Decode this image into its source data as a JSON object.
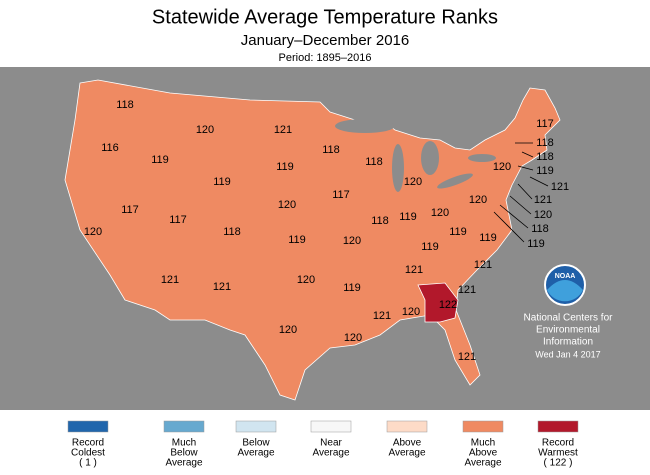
{
  "header": {
    "title": "Statewide Average Temperature Ranks",
    "subtitle": "January–December 2016",
    "period": "Period: 1895–2016"
  },
  "map": {
    "background": "#8c8c8c",
    "states": [
      {
        "rank": 118,
        "color": "#ef8a62"
      },
      {
        "rank": 116,
        "color": "#ef8a62"
      },
      {
        "rank": 119,
        "color": "#ef8a62"
      },
      {
        "rank": 120,
        "color": "#ef8a62"
      },
      {
        "rank": 119,
        "color": "#ef8a62"
      },
      {
        "rank": 121,
        "color": "#ef8a62"
      },
      {
        "rank": 119,
        "color": "#ef8a62"
      },
      {
        "rank": 118,
        "color": "#ef8a62"
      },
      {
        "rank": 118,
        "color": "#ef8a62"
      },
      {
        "rank": 120,
        "color": "#ef8a62"
      },
      {
        "rank": 120,
        "color": "#ef8a62"
      },
      {
        "rank": 117,
        "color": "#ef8a62"
      },
      {
        "rank": 117,
        "color": "#ef8a62"
      },
      {
        "rank": 117,
        "color": "#ef8a62"
      },
      {
        "rank": 118,
        "color": "#ef8a62"
      },
      {
        "rank": 119,
        "color": "#ef8a62"
      },
      {
        "rank": 120,
        "color": "#ef8a62"
      },
      {
        "rank": 118,
        "color": "#ef8a62"
      },
      {
        "rank": 119,
        "color": "#ef8a62"
      },
      {
        "rank": 120,
        "color": "#ef8a62"
      },
      {
        "rank": 120,
        "color": "#ef8a62"
      },
      {
        "rank": 120,
        "color": "#ef8a62"
      },
      {
        "rank": 117,
        "color": "#ef8a62"
      },
      {
        "rank": 120,
        "color": "#ef8a62"
      },
      {
        "rank": 121,
        "color": "#ef8a62"
      },
      {
        "rank": 121,
        "color": "#ef8a62"
      },
      {
        "rank": 120,
        "color": "#ef8a62"
      },
      {
        "rank": 119,
        "color": "#ef8a62"
      },
      {
        "rank": 121,
        "color": "#ef8a62"
      },
      {
        "rank": 119,
        "color": "#ef8a62"
      },
      {
        "rank": 119,
        "color": "#ef8a62"
      },
      {
        "rank": 119,
        "color": "#ef8a62"
      },
      {
        "rank": 121,
        "color": "#ef8a62"
      },
      {
        "rank": 120,
        "color": "#ef8a62"
      },
      {
        "rank": 120,
        "color": "#ef8a62"
      },
      {
        "rank": 121,
        "color": "#ef8a62"
      },
      {
        "rank": 120,
        "color": "#ef8a62"
      },
      {
        "rank": 122,
        "color": "#b2182b"
      },
      {
        "rank": 121,
        "color": "#ef8a62"
      },
      {
        "rank": 121,
        "color": "#ef8a62"
      },
      {
        "rank": 118,
        "color": "#ef8a62"
      },
      {
        "rank": 118,
        "color": "#ef8a62"
      },
      {
        "rank": 119,
        "color": "#ef8a62"
      },
      {
        "rank": 121,
        "color": "#ef8a62"
      },
      {
        "rank": 121,
        "color": "#ef8a62"
      },
      {
        "rank": 120,
        "color": "#ef8a62"
      },
      {
        "rank": 118,
        "color": "#ef8a62"
      },
      {
        "rank": 119,
        "color": "#ef8a62"
      }
    ]
  },
  "legend": {
    "items": [
      {
        "lines": [
          "Record",
          "Coldest",
          "( 1 )"
        ],
        "color": "#2166ac"
      },
      {
        "lines": [
          "Much",
          "Below",
          "Average"
        ],
        "color": "#67a9cf"
      },
      {
        "lines": [
          "Below",
          "Average"
        ],
        "color": "#d1e5f0"
      },
      {
        "lines": [
          "Near",
          "Average"
        ],
        "color": "#f7f7f7"
      },
      {
        "lines": [
          "Above",
          "Average"
        ],
        "color": "#fddbc7"
      },
      {
        "lines": [
          "Much",
          "Above",
          "Average"
        ],
        "color": "#ef8a62"
      },
      {
        "lines": [
          "Record",
          "Warmest",
          "( 122 )"
        ],
        "color": "#b2182b"
      }
    ]
  },
  "credit": {
    "logo": "NOAA",
    "lines": [
      "National Centers for",
      "Environmental",
      "Information"
    ],
    "date": "Wed Jan 4 2017"
  }
}
